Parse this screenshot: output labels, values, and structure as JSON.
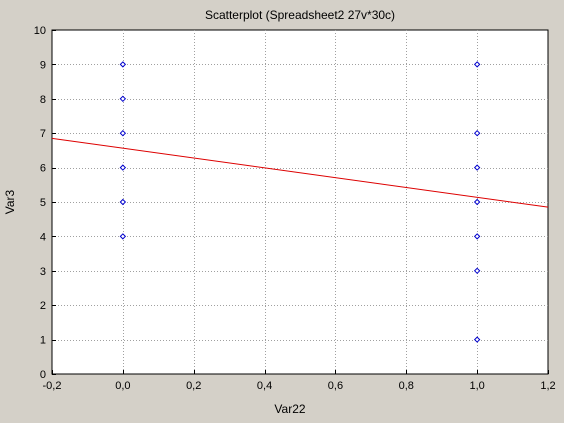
{
  "chart_data": {
    "type": "scatter",
    "title": "Scatterplot (Spreadsheet2 27v*30c)",
    "xlabel": "Var22",
    "ylabel": "Var3",
    "xlim": [
      -0.2,
      1.2
    ],
    "ylim": [
      0,
      10
    ],
    "xticks": [
      -0.2,
      0.0,
      0.2,
      0.4,
      0.6,
      0.8,
      1.0,
      1.2
    ],
    "xtick_labels": [
      "-0,2",
      "0,0",
      "0,2",
      "0,4",
      "0,6",
      "0,8",
      "1,0",
      "1,2"
    ],
    "yticks": [
      0,
      1,
      2,
      3,
      4,
      5,
      6,
      7,
      8,
      9,
      10
    ],
    "ytick_labels": [
      "0",
      "1",
      "2",
      "3",
      "4",
      "5",
      "6",
      "7",
      "8",
      "9",
      "10"
    ],
    "grid": true,
    "points": [
      {
        "x": 0,
        "y": 9
      },
      {
        "x": 0,
        "y": 8
      },
      {
        "x": 0,
        "y": 7
      },
      {
        "x": 0,
        "y": 6
      },
      {
        "x": 0,
        "y": 5
      },
      {
        "x": 0,
        "y": 4
      },
      {
        "x": 1,
        "y": 9
      },
      {
        "x": 1,
        "y": 7
      },
      {
        "x": 1,
        "y": 6
      },
      {
        "x": 1,
        "y": 5
      },
      {
        "x": 1,
        "y": 4
      },
      {
        "x": 1,
        "y": 3
      },
      {
        "x": 1,
        "y": 1
      }
    ],
    "fit_line": {
      "x": [
        -0.2,
        1.2
      ],
      "y": [
        6.85,
        4.85
      ]
    },
    "colors": {
      "background": "#d4d0c8",
      "plot_background": "#ffffff",
      "points": "#0000cc",
      "fit_line": "#dd0000",
      "grid": "#a0a0a0"
    }
  }
}
